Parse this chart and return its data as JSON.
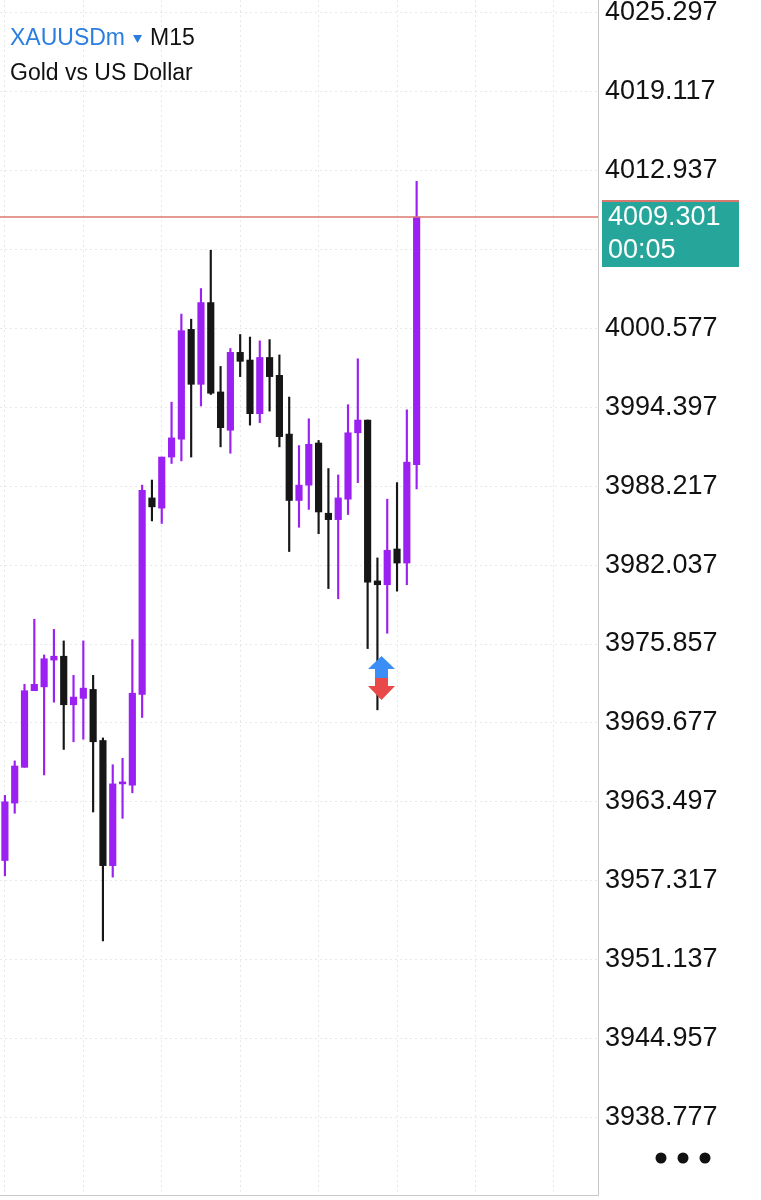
{
  "chart_data": {
    "type": "candlestick",
    "title": "XAUUSDm",
    "subtitle": "Gold vs US Dollar",
    "annotations": [
      "M15",
      "00:05"
    ],
    "categories": [
      null,
      null,
      null,
      null,
      null,
      null,
      null,
      null,
      null,
      null,
      null,
      null,
      null,
      null,
      null,
      null,
      null,
      null,
      null,
      null,
      null,
      null,
      null,
      null,
      null,
      null,
      null,
      null,
      null,
      null,
      null,
      null,
      null,
      null,
      null,
      null,
      null,
      null,
      null,
      null,
      null,
      null,
      null,
      null,
      null,
      null,
      null,
      null,
      null,
      null,
      null,
      null,
      null,
      null,
      null,
      null,
      null,
      null,
      null,
      null,
      null
    ],
    "ohlc": [
      [
        3958.9,
        3964.0,
        3957.7,
        3963.5
      ],
      [
        3963.4,
        3966.7,
        3962.6,
        3966.3
      ],
      [
        3966.2,
        3972.7,
        3966.2,
        3972.2
      ],
      [
        3972.2,
        3977.8,
        3972.2,
        3972.7
      ],
      [
        3972.5,
        3975.0,
        3965.6,
        3974.7
      ],
      [
        3974.6,
        3977.0,
        3971.3,
        3974.9
      ],
      [
        3974.9,
        3976.1,
        3967.6,
        3971.1
      ],
      [
        3971.1,
        3973.4,
        3968.2,
        3971.7
      ],
      [
        3971.6,
        3976.1,
        3968.4,
        3972.4
      ],
      [
        3972.3,
        3973.4,
        3962.7,
        3968.2
      ],
      [
        3968.3,
        3968.5,
        3952.6,
        3958.5
      ],
      [
        3958.5,
        3966.4,
        3957.6,
        3964.9
      ],
      [
        3964.9,
        3966.9,
        3962.2,
        3965.0
      ],
      [
        3964.8,
        3976.2,
        3964.2,
        3972.0
      ],
      [
        3971.9,
        3988.3,
        3970.1,
        3987.9
      ],
      [
        3987.3,
        3988.7,
        3985.5,
        3986.6
      ],
      [
        3986.5,
        3990.5,
        3985.3,
        3990.5
      ],
      [
        3990.5,
        3994.8,
        3990.0,
        3992.0
      ],
      [
        3991.9,
        4001.7,
        3990.2,
        4000.4
      ],
      [
        4000.5,
        4001.3,
        3990.5,
        3996.2
      ],
      [
        3996.2,
        4003.7,
        3994.5,
        4002.6
      ],
      [
        4002.6,
        4006.7,
        3995.4,
        3995.5
      ],
      [
        3995.6,
        3997.6,
        3991.3,
        3992.8
      ],
      [
        3992.6,
        3999.0,
        3990.8,
        3998.7
      ],
      [
        3998.7,
        4000.1,
        3996.8,
        3998.0
      ],
      [
        3998.1,
        3999.9,
        3993.0,
        3993.9
      ],
      [
        3993.9,
        3999.6,
        3993.2,
        3998.3
      ],
      [
        3998.3,
        3999.7,
        3994.1,
        3996.8
      ],
      [
        3996.9,
        3998.5,
        3991.3,
        3992.1
      ],
      [
        3992.3,
        3995.2,
        3983.1,
        3987.1
      ],
      [
        3987.1,
        3991.4,
        3985.0,
        3988.3
      ],
      [
        3988.3,
        3993.5,
        3986.4,
        3991.5
      ],
      [
        3991.6,
        3991.8,
        3984.5,
        3986.2
      ],
      [
        3986.1,
        3989.6,
        3980.2,
        3985.6
      ],
      [
        3985.6,
        3989.1,
        3979.4,
        3987.3
      ],
      [
        3987.2,
        3994.6,
        3986.0,
        3992.4
      ],
      [
        3992.4,
        3998.2,
        3988.5,
        3993.4
      ],
      [
        3993.4,
        3993.4,
        3975.5,
        3980.7
      ],
      [
        3980.8,
        3982.6,
        3970.7,
        3980.5
      ],
      [
        3980.5,
        3987.2,
        3976.7,
        3983.2
      ],
      [
        3983.3,
        3988.5,
        3980.0,
        3982.2
      ],
      [
        3982.2,
        3994.2,
        3980.5,
        3990.1
      ],
      [
        3989.9,
        4012.1,
        3988.0,
        4009.3
      ],
      null,
      null,
      null,
      null,
      null,
      null,
      null,
      null,
      null,
      null,
      null,
      null,
      null,
      null,
      null,
      null,
      null,
      null
    ],
    "colors": [
      "#9b20f2",
      "#9b20f2",
      "#9b20f2",
      "#9b20f2",
      "#9b20f2",
      "#9b20f2",
      "#161616",
      "#9b20f2",
      "#9b20f2",
      "#161616",
      "#161616",
      "#9b20f2",
      "#9b20f2",
      "#9b20f2",
      "#9b20f2",
      "#161616",
      "#9b20f2",
      "#9b20f2",
      "#9b20f2",
      "#161616",
      "#9b20f2",
      "#161616",
      "#161616",
      "#9b20f2",
      "#161616",
      "#161616",
      "#9b20f2",
      "#161616",
      "#161616",
      "#161616",
      "#9b20f2",
      "#9b20f2",
      "#161616",
      "#161616",
      "#9b20f2",
      "#9b20f2",
      "#9b20f2",
      "#161616",
      "#161616",
      "#9b20f2",
      "#161616",
      "#9b20f2",
      "#9b20f2",
      null,
      null,
      null,
      null,
      null,
      null,
      null,
      null,
      null,
      null,
      null,
      null,
      null,
      null,
      null,
      null,
      null,
      null
    ],
    "ylim": [
      3932.7,
      4026.3
    ],
    "yticks": [
      3938.777,
      3944.957,
      3951.137,
      3957.317,
      3963.497,
      3969.677,
      3975.857,
      3982.037,
      3988.217,
      3994.397,
      4000.577,
      {
        "value": 4006.757,
        "label": null
      },
      4012.937,
      4019.117,
      4025.297
    ],
    "ref_lines": [
      {
        "axis": "y",
        "value": 4009.301,
        "label": "4009.301",
        "color": "#d9786f"
      }
    ],
    "grid": true,
    "tick_labels": "y"
  }
}
